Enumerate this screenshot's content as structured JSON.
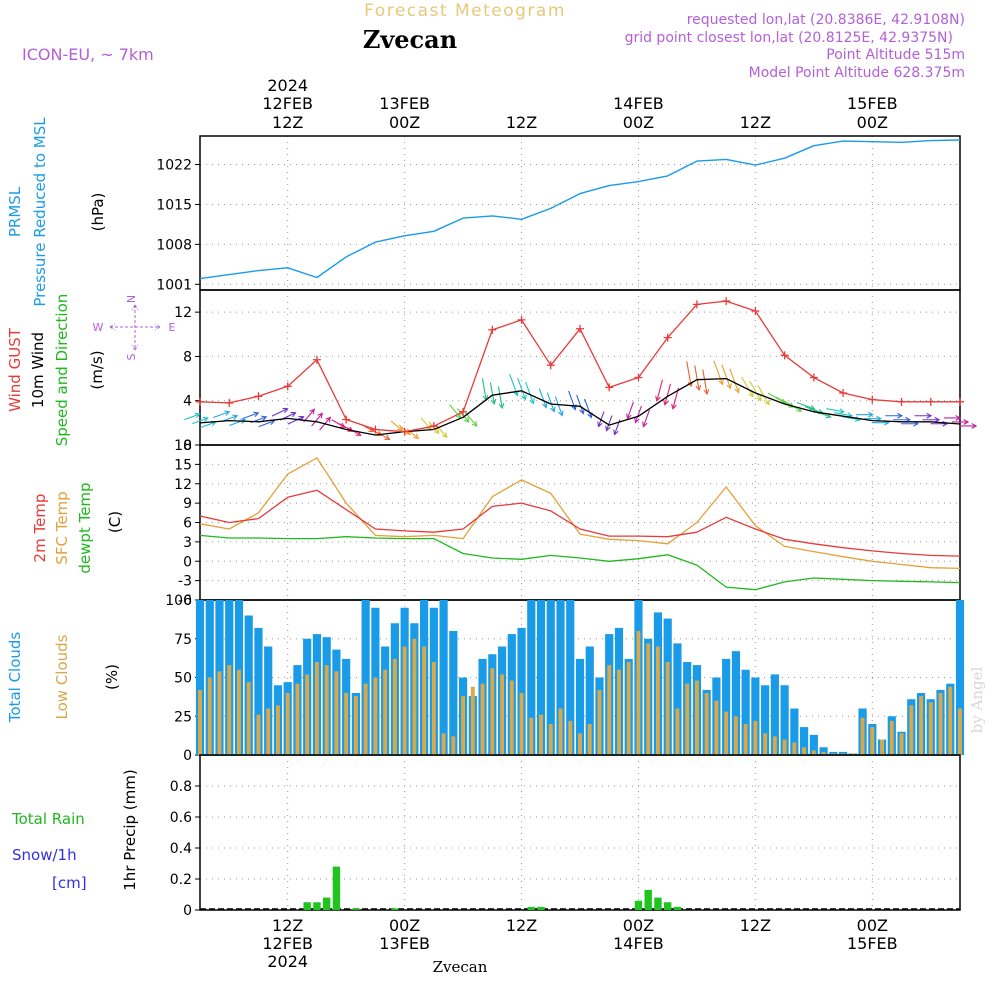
{
  "header": {
    "product": "Forecast Meteogram",
    "location": "Zvecan",
    "model": "ICON-EU, ~ 7km",
    "requested": "requested lon,lat (20.8386E, 42.9108N)",
    "gridpoint": "grid point closest lon,lat (20.8125E, 42.9375N)",
    "altitude": "Point Altitude 515m",
    "model_altitude": "Model Point Altitude 628.375m",
    "footer": "Zvecan",
    "credit": "by Angel"
  },
  "time_axis": {
    "start": "2024-02-12T03:00Z",
    "end": "2024-02-15T09:00Z",
    "top_year": "2024",
    "bottom_year": "2024",
    "labels": [
      {
        "t": "2024-02-12T12:00Z",
        "hour": "12Z",
        "date": "12FEB"
      },
      {
        "t": "2024-02-13T00:00Z",
        "hour": "00Z",
        "date": "13FEB"
      },
      {
        "t": "2024-02-13T12:00Z",
        "hour": "12Z",
        "date": ""
      },
      {
        "t": "2024-02-14T00:00Z",
        "hour": "00Z",
        "date": "14FEB"
      },
      {
        "t": "2024-02-14T12:00Z",
        "hour": "12Z",
        "date": ""
      },
      {
        "t": "2024-02-15T00:00Z",
        "hour": "00Z",
        "date": "15FEB"
      }
    ]
  },
  "panels": {
    "pressure": {
      "label1": "PRMSL",
      "label2": "Pressure Reduced to MSL",
      "unit": "(hPa)"
    },
    "wind": {
      "label_gust": "Wind GUST",
      "label_wind": "10m Wind",
      "label_dir": "Speed and Direction",
      "unit": "(m/s)",
      "compass_n": "N",
      "compass_s": "S",
      "compass_w": "W",
      "compass_e": "E"
    },
    "temp": {
      "label_t2m": "2m Temp",
      "label_sfc": "SFC Temp",
      "label_dew": "dewpt Temp",
      "unit": "(C)"
    },
    "clouds": {
      "label_total": "Total Clouds",
      "label_low": "Low Clouds",
      "unit": "(%)"
    },
    "precip": {
      "label_rain": "Total  Rain",
      "label_snow": "Snow/1h",
      "label_snow_unit": "[cm]",
      "axis_label": "1hr Precip (mm)"
    }
  },
  "chart_data": [
    {
      "type": "line",
      "name": "pressure",
      "ylim": [
        1000,
        1027
      ],
      "yticks": [
        1001,
        1008,
        1015,
        1022
      ],
      "colors": {
        "prmsl": "#1a9be8"
      },
      "x_hours": [
        0,
        3,
        6,
        9,
        12,
        15,
        18,
        21,
        24,
        27,
        30,
        33,
        36,
        39,
        42,
        45,
        48,
        51,
        54,
        57,
        60,
        63,
        66,
        69,
        72,
        75,
        78
      ],
      "prmsl": [
        1002.0,
        1002.7,
        1003.4,
        1003.9,
        1002.2,
        1005.8,
        1008.4,
        1009.5,
        1010.3,
        1012.6,
        1013.0,
        1012.4,
        1014.3,
        1016.9,
        1018.3,
        1019.0,
        1020.0,
        1022.6,
        1022.9,
        1021.9,
        1023.1,
        1025.3,
        1026.1,
        1026.0,
        1025.9,
        1026.2,
        1026.3
      ]
    },
    {
      "type": "line",
      "name": "wind",
      "ylim": [
        0,
        14
      ],
      "yticks": [
        0,
        4,
        8,
        12
      ],
      "colors": {
        "gust": "#e83a3a",
        "wind": "#000000"
      },
      "x_hours": [
        0,
        3,
        6,
        9,
        12,
        15,
        18,
        21,
        24,
        27,
        30,
        33,
        36,
        39,
        42,
        45,
        48,
        51,
        54,
        57,
        60,
        63,
        66,
        69,
        72,
        75,
        78
      ],
      "gust": [
        3.9,
        3.8,
        4.4,
        5.3,
        7.7,
        2.3,
        1.4,
        1.2,
        1.7,
        3.0,
        10.4,
        11.3,
        7.2,
        10.5,
        5.2,
        6.1,
        9.7,
        12.7,
        13.0,
        12.1,
        8.1,
        6.1,
        4.7,
        4.1,
        3.9,
        3.9,
        3.9
      ],
      "wind": [
        2.0,
        2.2,
        2.1,
        2.4,
        2.1,
        1.4,
        0.9,
        1.2,
        1.4,
        2.5,
        4.5,
        4.9,
        3.7,
        3.5,
        1.8,
        2.6,
        4.4,
        5.9,
        6.0,
        4.7,
        3.7,
        3.0,
        2.6,
        2.2,
        2.1,
        2.1,
        1.9
      ],
      "wind_dir_deg": [
        250,
        250,
        250,
        245,
        220,
        300,
        300,
        310,
        320,
        320,
        350,
        340,
        340,
        340,
        20,
        20,
        15,
        350,
        340,
        330,
        300,
        290,
        280,
        270,
        270,
        270,
        270
      ]
    },
    {
      "type": "line",
      "name": "temperature",
      "ylim": [
        -6,
        18
      ],
      "yticks": [
        -6,
        -3,
        0,
        3,
        6,
        9,
        12,
        15,
        18
      ],
      "colors": {
        "t2m": "#e83a3a",
        "sfc": "#e3a13a",
        "dew": "#1fb81f"
      },
      "x_hours": [
        0,
        3,
        6,
        9,
        12,
        15,
        18,
        21,
        24,
        27,
        30,
        33,
        36,
        39,
        42,
        45,
        48,
        51,
        54,
        57,
        60,
        63,
        66,
        69,
        72,
        75,
        78
      ],
      "t2m": [
        7.0,
        6.0,
        6.6,
        9.9,
        11.0,
        8.0,
        5.0,
        4.7,
        4.5,
        5.0,
        8.5,
        9.0,
        7.8,
        5.0,
        3.9,
        3.9,
        3.8,
        4.5,
        6.8,
        5.0,
        3.4,
        2.7,
        2.1,
        1.6,
        1.2,
        0.9,
        0.8
      ],
      "sfc": [
        5.8,
        5.0,
        7.5,
        13.5,
        16.0,
        9.0,
        4.0,
        3.8,
        4.0,
        3.5,
        10.0,
        12.6,
        10.5,
        4.2,
        3.4,
        3.2,
        2.7,
        6.0,
        11.5,
        5.5,
        2.3,
        1.5,
        0.7,
        0.0,
        -0.5,
        -1.0,
        -1.1
      ],
      "dew": [
        4.0,
        3.6,
        3.6,
        3.5,
        3.5,
        3.8,
        3.6,
        3.5,
        3.5,
        1.2,
        0.5,
        0.3,
        0.9,
        0.5,
        0.0,
        0.4,
        1.0,
        -0.6,
        -4.0,
        -4.4,
        -3.2,
        -2.6,
        -2.8,
        -3.0,
        -3.1,
        -3.2,
        -3.3
      ]
    },
    {
      "type": "bar",
      "name": "clouds",
      "ylim": [
        0,
        100
      ],
      "yticks": [
        0,
        25,
        50,
        75,
        100
      ],
      "colors": {
        "total": "#1a9be8",
        "low": "#d8a84a"
      },
      "x_hours": [
        0,
        1,
        2,
        3,
        4,
        5,
        6,
        7,
        8,
        9,
        10,
        11,
        12,
        13,
        14,
        15,
        16,
        17,
        18,
        19,
        20,
        21,
        22,
        23,
        24,
        25,
        26,
        27,
        28,
        29,
        30,
        31,
        32,
        33,
        34,
        35,
        36,
        37,
        38,
        39,
        40,
        41,
        42,
        43,
        44,
        45,
        46,
        47,
        48,
        49,
        50,
        51,
        52,
        53,
        54,
        55,
        56,
        57,
        58,
        59,
        60,
        61,
        62,
        63,
        64,
        65,
        66,
        67,
        68,
        69,
        70,
        71,
        72,
        73,
        74,
        75,
        76,
        77,
        78
      ],
      "total": [
        100,
        100,
        100,
        100,
        100,
        90,
        82,
        70,
        45,
        47,
        58,
        75,
        78,
        76,
        68,
        62,
        40,
        100,
        95,
        70,
        85,
        95,
        85,
        100,
        95,
        100,
        80,
        50,
        38,
        62,
        65,
        70,
        78,
        82,
        100,
        100,
        100,
        100,
        100,
        62,
        70,
        50,
        78,
        82,
        62,
        100,
        75,
        92,
        88,
        72,
        60,
        58,
        42,
        50,
        62,
        67,
        55,
        50,
        45,
        52,
        45,
        30,
        18,
        13,
        5,
        2,
        2,
        1,
        30,
        20,
        10,
        25,
        15,
        36,
        40,
        36,
        42,
        46,
        100
      ],
      "low": [
        42,
        50,
        54,
        58,
        55,
        47,
        26,
        30,
        32,
        40,
        46,
        52,
        60,
        58,
        54,
        40,
        38,
        46,
        50,
        55,
        62,
        70,
        75,
        70,
        60,
        14,
        12,
        38,
        44,
        46,
        56,
        52,
        48,
        40,
        24,
        26,
        20,
        30,
        22,
        14,
        20,
        42,
        58,
        55,
        60,
        80,
        72,
        70,
        60,
        30,
        46,
        48,
        40,
        35,
        28,
        25,
        20,
        22,
        14,
        12,
        10,
        8,
        5,
        3,
        2,
        1,
        1,
        1,
        24,
        18,
        10,
        22,
        14,
        32,
        38,
        34,
        40,
        44,
        30
      ]
    },
    {
      "type": "bar",
      "name": "precipitation",
      "ylim": [
        0,
        1
      ],
      "yticks": [
        0,
        0.2,
        0.4,
        0.6,
        0.8
      ],
      "colors": {
        "rain": "#1fc41f",
        "snow": "#3030e8"
      },
      "x_hours": [
        11,
        12,
        13,
        14,
        16,
        20,
        34,
        35,
        45,
        46,
        47,
        48,
        49
      ],
      "rain": [
        0.05,
        0.05,
        0.08,
        0.28,
        0.01,
        0.01,
        0.02,
        0.02,
        0.06,
        0.13,
        0.08,
        0.05,
        0.02
      ]
    }
  ]
}
